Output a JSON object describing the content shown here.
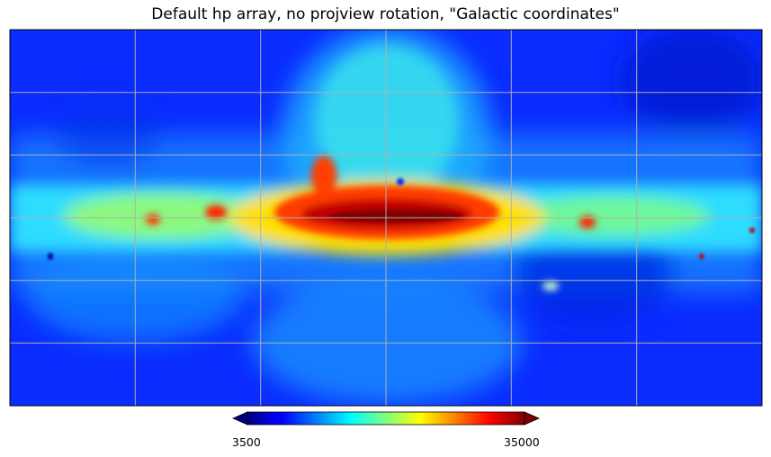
{
  "chart_data": {
    "type": "heatmap",
    "title": "Default hp array, no projview rotation, \"Galactic coordinates\"",
    "projection": "cartesian",
    "colormap": "jet",
    "colorbar": {
      "min": 3500,
      "max": 35000,
      "tick_labels": [
        "3500",
        "35000"
      ],
      "extend": "both",
      "placement": "bottom"
    },
    "grid": true,
    "graticule": {
      "meridian_step_deg": 60,
      "parallel_step_deg": 30
    },
    "grid_color": "#b0b0b0"
  }
}
